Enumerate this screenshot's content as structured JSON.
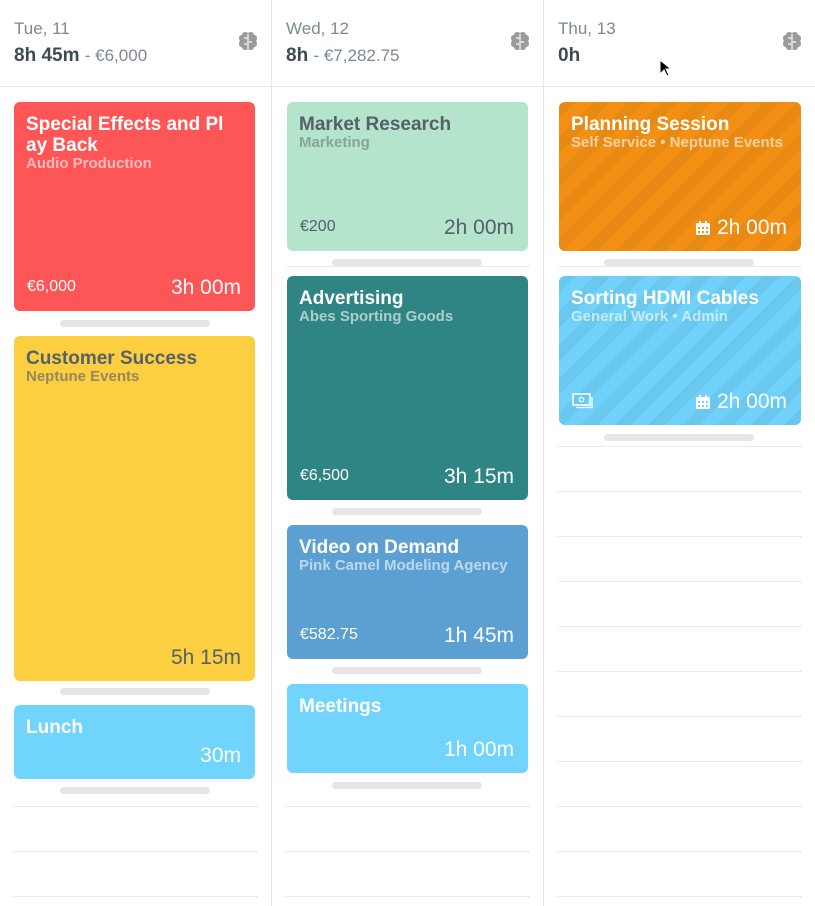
{
  "days": [
    {
      "label": "Tue, 11",
      "hours": "8h 45m",
      "amount": "- €6,000",
      "entries": [
        {
          "title": "Special Effects and Pl ay Back",
          "subtitle": "Audio Production",
          "amount": "€6,000",
          "duration": "3h 00m",
          "color": "#fe5656"
        },
        {
          "title": "Customer Success",
          "subtitle": "Neptune Events",
          "amount": "",
          "duration": "5h 15m",
          "color": "#fbcf40"
        },
        {
          "title": "Lunch",
          "subtitle": "",
          "amount": "",
          "duration": "30m",
          "color": "#70d4fc"
        }
      ]
    },
    {
      "label": "Wed, 12",
      "hours": "8h",
      "amount": "- €7,282.75",
      "entries": [
        {
          "title": "Market Research",
          "subtitle": "Marketing",
          "amount": "€200",
          "duration": "2h 00m",
          "color": "#b4e4cc"
        },
        {
          "title": "Advertising",
          "subtitle": "Abes Sporting Goods",
          "amount": "€6,500",
          "duration": "3h 15m",
          "color": "#2e8584"
        },
        {
          "title": "Video on Demand",
          "subtitle": "Pink Camel Modeling Agency",
          "amount": "€582.75",
          "duration": "1h 45m",
          "color": "#5b9fd3"
        },
        {
          "title": "Meetings",
          "subtitle": "",
          "amount": "",
          "duration": "1h 00m",
          "color": "#70d4fc"
        }
      ]
    },
    {
      "label": "Thu, 13",
      "hours": "0h",
      "amount": "",
      "entries": [
        {
          "title": "Planning Session",
          "subtitle": "Self Service • Neptune Events",
          "amount": "",
          "duration": "2h 00m",
          "color": "#f39013",
          "icon": "calendar-icon"
        },
        {
          "title": "Sorting HDMI Cables",
          "subtitle": "General Work • Admin",
          "amount": "",
          "duration": "2h 00m",
          "color": "#70d2fb",
          "icon": "calendar-icon",
          "extra_icon": "money-icon"
        }
      ]
    }
  ]
}
